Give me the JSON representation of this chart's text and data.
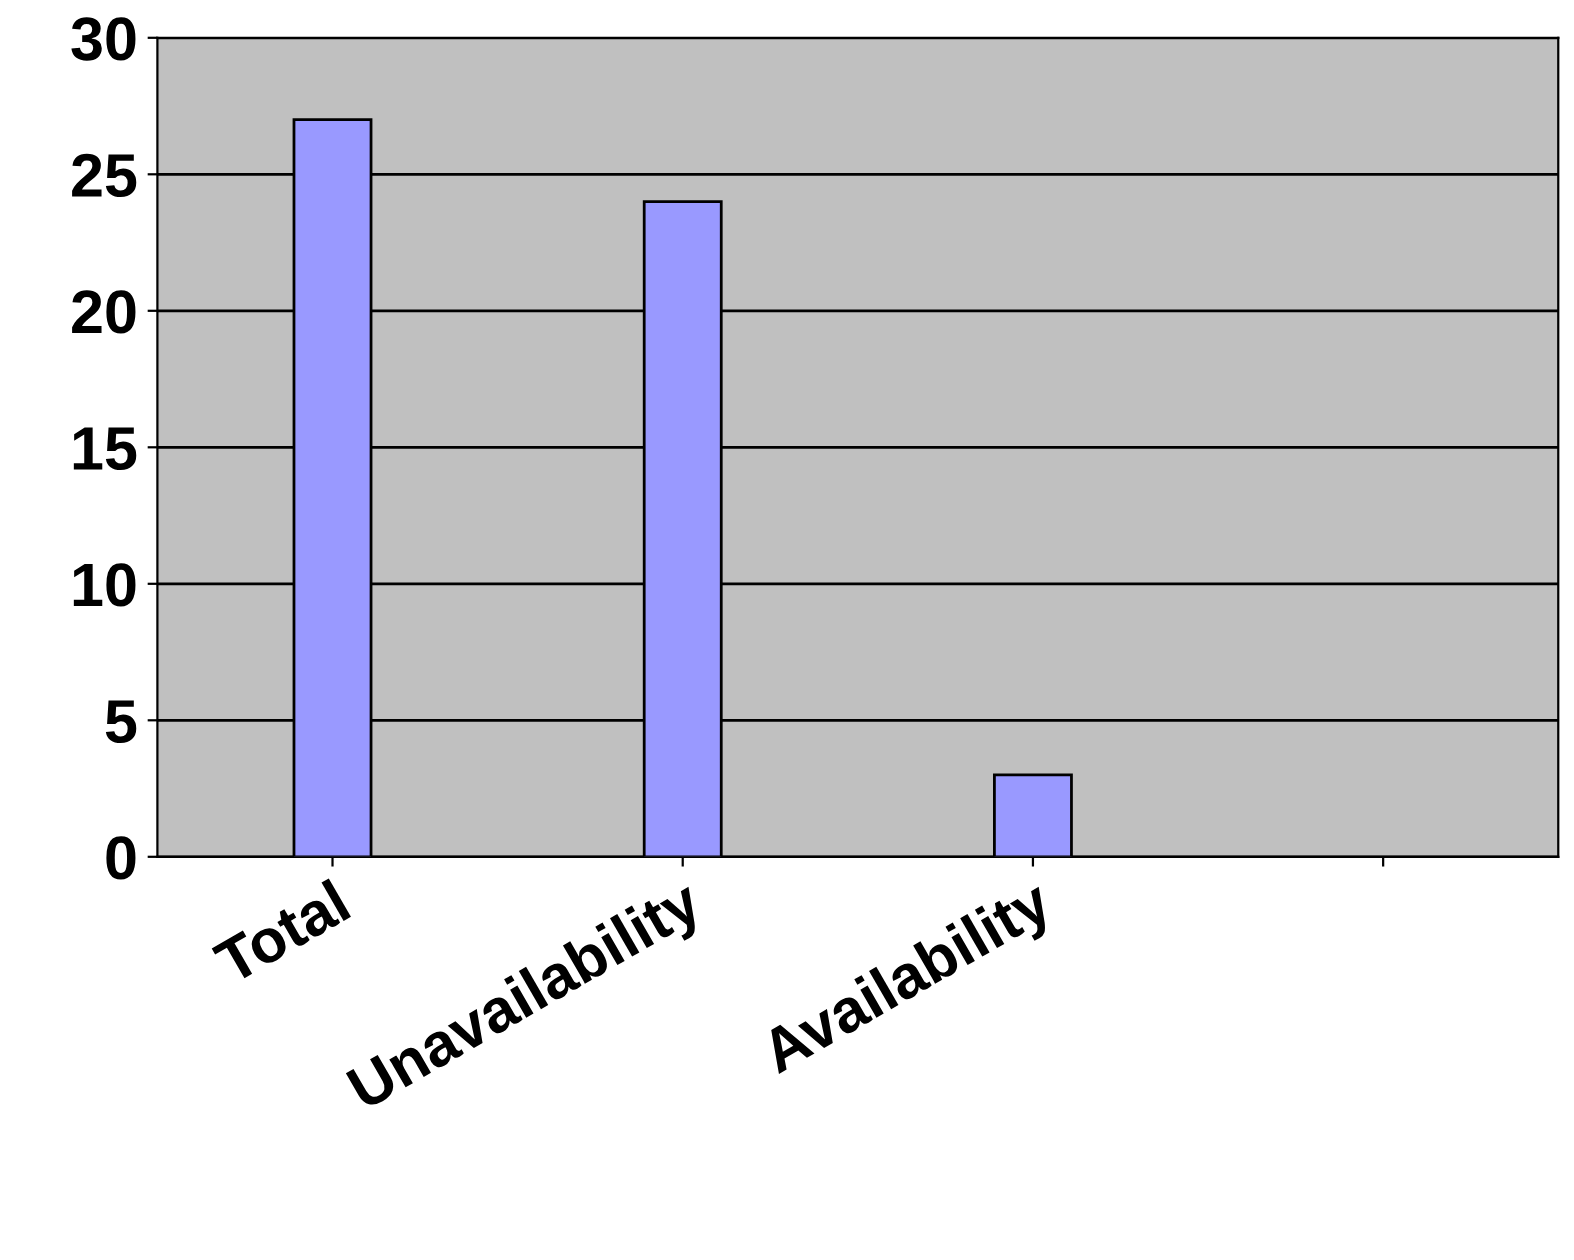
{
  "chart_data": {
    "type": "bar",
    "categories": [
      "Total",
      "Unavailability",
      "Availability",
      null
    ],
    "series": [
      {
        "color": "#9999ff",
        "values": [
          27,
          24,
          3,
          null
        ]
      }
    ],
    "ylim": [
      0,
      30
    ],
    "yticks": [
      0,
      5,
      10,
      15,
      20,
      25,
      30
    ],
    "grid": "y"
  }
}
